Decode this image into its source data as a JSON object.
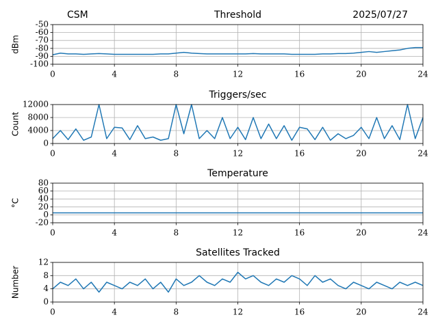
{
  "chart_data": [
    {
      "type": "line",
      "title": "Threshold",
      "annotations": [
        "CSM",
        "2025/07/27"
      ],
      "ylabel": "dBm",
      "x": [
        0,
        0.5,
        1,
        1.5,
        2,
        2.5,
        3,
        3.5,
        4,
        4.5,
        5,
        5.5,
        6,
        6.5,
        7,
        7.5,
        8,
        8.5,
        9,
        9.5,
        10,
        10.5,
        11,
        11.5,
        12,
        12.5,
        13,
        13.5,
        14,
        14.5,
        15,
        15.5,
        16,
        16.5,
        17,
        17.5,
        18,
        18.5,
        19,
        19.5,
        20,
        20.5,
        21,
        21.5,
        22,
        22.5,
        23,
        23.5,
        24
      ],
      "series": [
        {
          "name": "Threshold",
          "color": "#1f77b4",
          "values": [
            -88,
            -86,
            -87,
            -87,
            -87.5,
            -87,
            -86.5,
            -87,
            -87.5,
            -87.5,
            -87.5,
            -87.5,
            -87.5,
            -87.5,
            -87,
            -87,
            -86,
            -85,
            -86,
            -86.5,
            -87,
            -87,
            -87,
            -87,
            -87,
            -87,
            -86.5,
            -87,
            -87,
            -87,
            -87,
            -87.5,
            -87.5,
            -87.5,
            -87.5,
            -87,
            -87,
            -86.5,
            -86.5,
            -86,
            -85,
            -84,
            -85,
            -84,
            -83,
            -82,
            -80,
            -79,
            -79
          ]
        }
      ],
      "xlim": [
        0,
        24
      ],
      "xticks": [
        0,
        4,
        8,
        12,
        16,
        20,
        24
      ],
      "ylim": [
        -100,
        -50
      ],
      "yticks": [
        -100,
        -90,
        -80,
        -70,
        -60,
        -50
      ],
      "grid": true
    },
    {
      "type": "line",
      "title": "Triggers/sec",
      "ylabel": "Count",
      "x": [
        0,
        0.5,
        1,
        1.5,
        2,
        2.5,
        3,
        3.5,
        4,
        4.5,
        5,
        5.5,
        6,
        6.5,
        7,
        7.5,
        8,
        8.5,
        9,
        9.5,
        10,
        10.5,
        11,
        11.5,
        12,
        12.5,
        13,
        13.5,
        14,
        14.5,
        15,
        15.5,
        16,
        16.5,
        17,
        17.5,
        18,
        18.5,
        19,
        19.5,
        20,
        20.5,
        21,
        21.5,
        22,
        22.5,
        23,
        23.5,
        24
      ],
      "series": [
        {
          "name": "Triggers/sec",
          "color": "#1f77b4",
          "values": [
            1500,
            4000,
            1200,
            4500,
            1000,
            2000,
            12000,
            1500,
            5000,
            4800,
            1200,
            5500,
            1500,
            2000,
            1000,
            1500,
            12000,
            3000,
            12000,
            1500,
            4000,
            1500,
            8000,
            1500,
            5000,
            1200,
            8000,
            1500,
            6000,
            1500,
            5500,
            1000,
            5000,
            4500,
            1200,
            5000,
            1000,
            3000,
            1500,
            2500,
            5000,
            1500,
            8000,
            1500,
            5500,
            1200,
            12000,
            1500,
            8000
          ]
        }
      ],
      "xlim": [
        0,
        24
      ],
      "xticks": [
        0,
        4,
        8,
        12,
        16,
        20,
        24
      ],
      "ylim": [
        0,
        12000
      ],
      "yticks": [
        0,
        4000,
        8000,
        12000
      ],
      "grid": true
    },
    {
      "type": "line",
      "title": "Temperature",
      "ylabel": "°C",
      "x": [
        0,
        24
      ],
      "series": [
        {
          "name": "Temperature",
          "color": "#1f77b4",
          "values": [
            5,
            5
          ]
        }
      ],
      "xlim": [
        0,
        24
      ],
      "xticks": [
        0,
        4,
        8,
        12,
        16,
        20,
        24
      ],
      "ylim": [
        -20,
        80
      ],
      "yticks": [
        -20,
        0,
        20,
        40,
        60,
        80
      ],
      "grid": true
    },
    {
      "type": "line",
      "title": "Satellites Tracked",
      "ylabel": "Number",
      "x": [
        0,
        0.5,
        1,
        1.5,
        2,
        2.5,
        3,
        3.5,
        4,
        4.5,
        5,
        5.5,
        6,
        6.5,
        7,
        7.5,
        8,
        8.5,
        9,
        9.5,
        10,
        10.5,
        11,
        11.5,
        12,
        12.5,
        13,
        13.5,
        14,
        14.5,
        15,
        15.5,
        16,
        16.5,
        17,
        17.5,
        18,
        18.5,
        19,
        19.5,
        20,
        20.5,
        21,
        21.5,
        22,
        22.5,
        23,
        23.5,
        24
      ],
      "series": [
        {
          "name": "Satellites Tracked",
          "color": "#1f77b4",
          "values": [
            4,
            6,
            5,
            7,
            4,
            6,
            3,
            6,
            5,
            4,
            6,
            5,
            7,
            4,
            6,
            3,
            7,
            5,
            6,
            8,
            6,
            5,
            7,
            6,
            9,
            7,
            8,
            6,
            5,
            7,
            6,
            8,
            7,
            5,
            8,
            6,
            7,
            5,
            4,
            6,
            5,
            4,
            6,
            5,
            4,
            6,
            5,
            6,
            5
          ]
        }
      ],
      "xlim": [
        0,
        24
      ],
      "xticks": [
        0,
        4,
        8,
        12,
        16,
        20,
        24
      ],
      "ylim": [
        0,
        12
      ],
      "yticks": [
        0,
        4,
        8,
        12
      ],
      "grid": true
    }
  ]
}
